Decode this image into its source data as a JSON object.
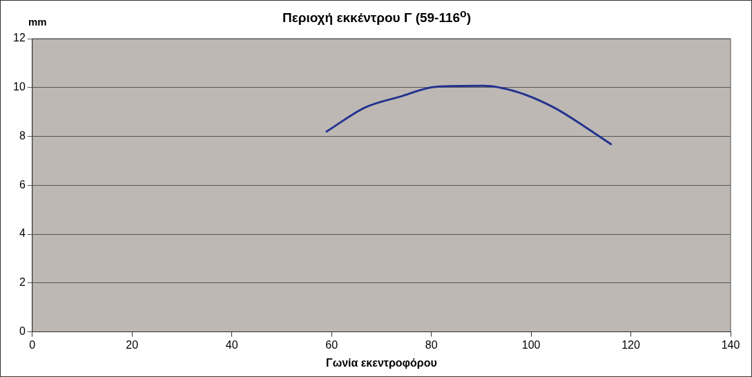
{
  "chart_data": {
    "type": "line",
    "title": "Περιοχή εκκέντρου Γ (59-116$^{o}$)",
    "xlabel": "Γωνία εκεντροφόρου",
    "ylabel": "mm",
    "series": [
      {
        "color": "#23338f",
        "x": [
          59,
          66.8,
          73.8,
          80.9,
          90.4,
          97.5,
          104.5,
          110.6,
          116
        ],
        "values": [
          8.2,
          9.19,
          9.63,
          10.03,
          10.07,
          9.8,
          9.19,
          8.42,
          7.68
        ]
      }
    ],
    "xlim": [
      0,
      140
    ],
    "xticks": [
      0,
      20,
      40,
      60,
      80,
      100,
      120,
      140
    ],
    "ylim": [
      0,
      12
    ],
    "yticks": [
      0,
      2,
      4,
      6,
      8,
      10,
      12
    ],
    "grid": "y",
    "legend": false,
    "marker": "none",
    "line_style": "solid"
  }
}
